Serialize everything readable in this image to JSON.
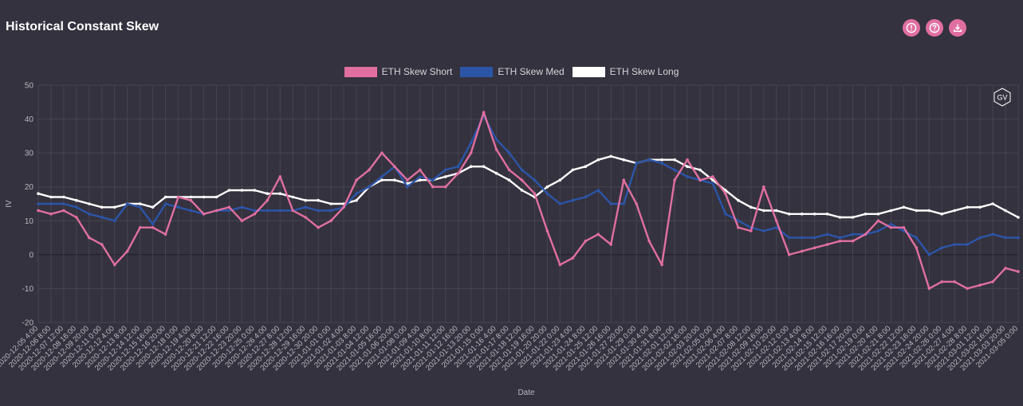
{
  "title": "Historical Constant Skew",
  "toolbar": {
    "icons": [
      "info-icon",
      "help-icon",
      "download-icon"
    ]
  },
  "watermark": "GV",
  "colors": {
    "background": "#34323e",
    "grid": "#4a4853",
    "axis_text": "#b9b9c0",
    "accent": "#e06fa0"
  },
  "chart_data": {
    "type": "line",
    "title": "Historical Constant Skew",
    "xlabel": "Date",
    "ylabel": "IV",
    "ylim": [
      -20,
      50
    ],
    "yticks": [
      -20,
      -10,
      0,
      10,
      20,
      30,
      40,
      50
    ],
    "grid": true,
    "legend_position": "top-center",
    "x_ticks": [
      "2020-12-05 4:00",
      "2020-12-06 8:00",
      "2020-12-07 12:00",
      "2020-12-08 16:00",
      "2020-12-09 20:00",
      "2020-12-11 0:00",
      "2020-12-12 4:00",
      "2020-12-13 8:00",
      "2020-12-14 12:00",
      "2020-12-15 16:00",
      "2020-12-16 20:00",
      "2020-12-18 0:00",
      "2020-12-19 4:00",
      "2020-12-20 8:00",
      "2020-12-21 12:00",
      "2020-12-22 16:00",
      "2020-12-23 20:00",
      "2020-12-25 0:00",
      "2020-12-26 4:00",
      "2020-12-27 8:00",
      "2020-12-28 12:00",
      "2020-12-29 16:00",
      "2020-12-30 20:00",
      "2021-01-01 0:00",
      "2021-01-02 4:00",
      "2021-01-03 8:00",
      "2021-01-04 12:00",
      "2021-01-05 16:00",
      "2021-01-06 20:00",
      "2021-01-08 0:00",
      "2021-01-09 4:00",
      "2021-01-10 8:00",
      "2021-01-11 12:00",
      "2021-01-12 16:00",
      "2021-01-13 20:00",
      "2021-01-15 0:00",
      "2021-01-16 4:00",
      "2021-01-17 8:00",
      "2021-01-18 12:00",
      "2021-01-19 16:00",
      "2021-01-20 20:00",
      "2021-01-22 0:00",
      "2021-01-23 4:00",
      "2021-01-24 8:00",
      "2021-01-25 12:00",
      "2021-01-26 16:00",
      "2021-01-27 20:00",
      "2021-01-29 0:00",
      "2021-01-30 4:00",
      "2021-01-31 8:00",
      "2021-02-01 12:00",
      "2021-02-02 16:00",
      "2021-02-03 20:00",
      "2021-02-05 0:00",
      "2021-02-06 4:00",
      "2021-02-07 8:00",
      "2021-02-08 12:00",
      "2021-02-09 16:00",
      "2021-02-10 20:00",
      "2021-02-12 0:00",
      "2021-02-13 4:00",
      "2021-02-14 8:00",
      "2021-02-15 12:00",
      "2021-02-16 16:00",
      "2021-02-17 20:00",
      "2021-02-19 0:00",
      "2021-02-20 4:00",
      "2021-02-21 8:00",
      "2021-02-22 12:00",
      "2021-02-23 16:00",
      "2021-02-24 20:00",
      "2021-02-26 0:00",
      "2021-02-27 4:00",
      "2021-02-28 8:00",
      "2021-03-01 12:00",
      "2021-03-02 16:00",
      "2021-03-03 20:00",
      "2021-03-05 0:00"
    ],
    "series": [
      {
        "name": "ETH Skew Short",
        "color": "#e06fa0",
        "values": [
          13,
          12,
          13,
          11,
          5,
          3,
          -3,
          1,
          8,
          8,
          6,
          17,
          16,
          12,
          13,
          14,
          10,
          12,
          16,
          23,
          13,
          11,
          8,
          10,
          14,
          22,
          25,
          30,
          26,
          22,
          25,
          20,
          20,
          24,
          30,
          42,
          31,
          25,
          22,
          18,
          7,
          -3,
          -1,
          4,
          6,
          3,
          22,
          15,
          4,
          -3,
          22,
          28,
          22,
          23,
          18,
          8,
          7,
          20,
          10,
          0,
          1,
          2,
          3,
          4,
          4,
          6,
          10,
          8,
          8,
          2,
          -10,
          -8,
          -8,
          -10,
          -9,
          -8,
          -4,
          -5
        ]
      },
      {
        "name": "ETH Skew Med",
        "color": "#2c55a8",
        "values": [
          15,
          15,
          15,
          14,
          12,
          11,
          10,
          15,
          14,
          9,
          15,
          14,
          13,
          12,
          13,
          13,
          14,
          13,
          13,
          13,
          13,
          14,
          13,
          13,
          14,
          18,
          20,
          23,
          26,
          20,
          23,
          22,
          25,
          26,
          33,
          41,
          34,
          30,
          25,
          22,
          18,
          15,
          16,
          17,
          19,
          15,
          15,
          27,
          28,
          27,
          25,
          23,
          22,
          21,
          12,
          10,
          8,
          7,
          8,
          5,
          5,
          5,
          6,
          5,
          6,
          6,
          7,
          9,
          7,
          5,
          0,
          2,
          3,
          3,
          5,
          6,
          5,
          5
        ]
      },
      {
        "name": "ETH Skew Long",
        "color": "#ffffff",
        "values": [
          18,
          17,
          17,
          16,
          15,
          14,
          14,
          15,
          15,
          14,
          17,
          17,
          17,
          17,
          17,
          19,
          19,
          19,
          18,
          18,
          17,
          16,
          16,
          15,
          15,
          16,
          20,
          22,
          22,
          21,
          22,
          22,
          23,
          24,
          26,
          26,
          24,
          22,
          19,
          17,
          20,
          22,
          25,
          26,
          28,
          29,
          28,
          27,
          28,
          28,
          28,
          26,
          25,
          22,
          19,
          16,
          14,
          13,
          13,
          12,
          12,
          12,
          12,
          11,
          11,
          12,
          12,
          13,
          14,
          13,
          13,
          12,
          13,
          14,
          14,
          15,
          13,
          11
        ]
      }
    ]
  }
}
